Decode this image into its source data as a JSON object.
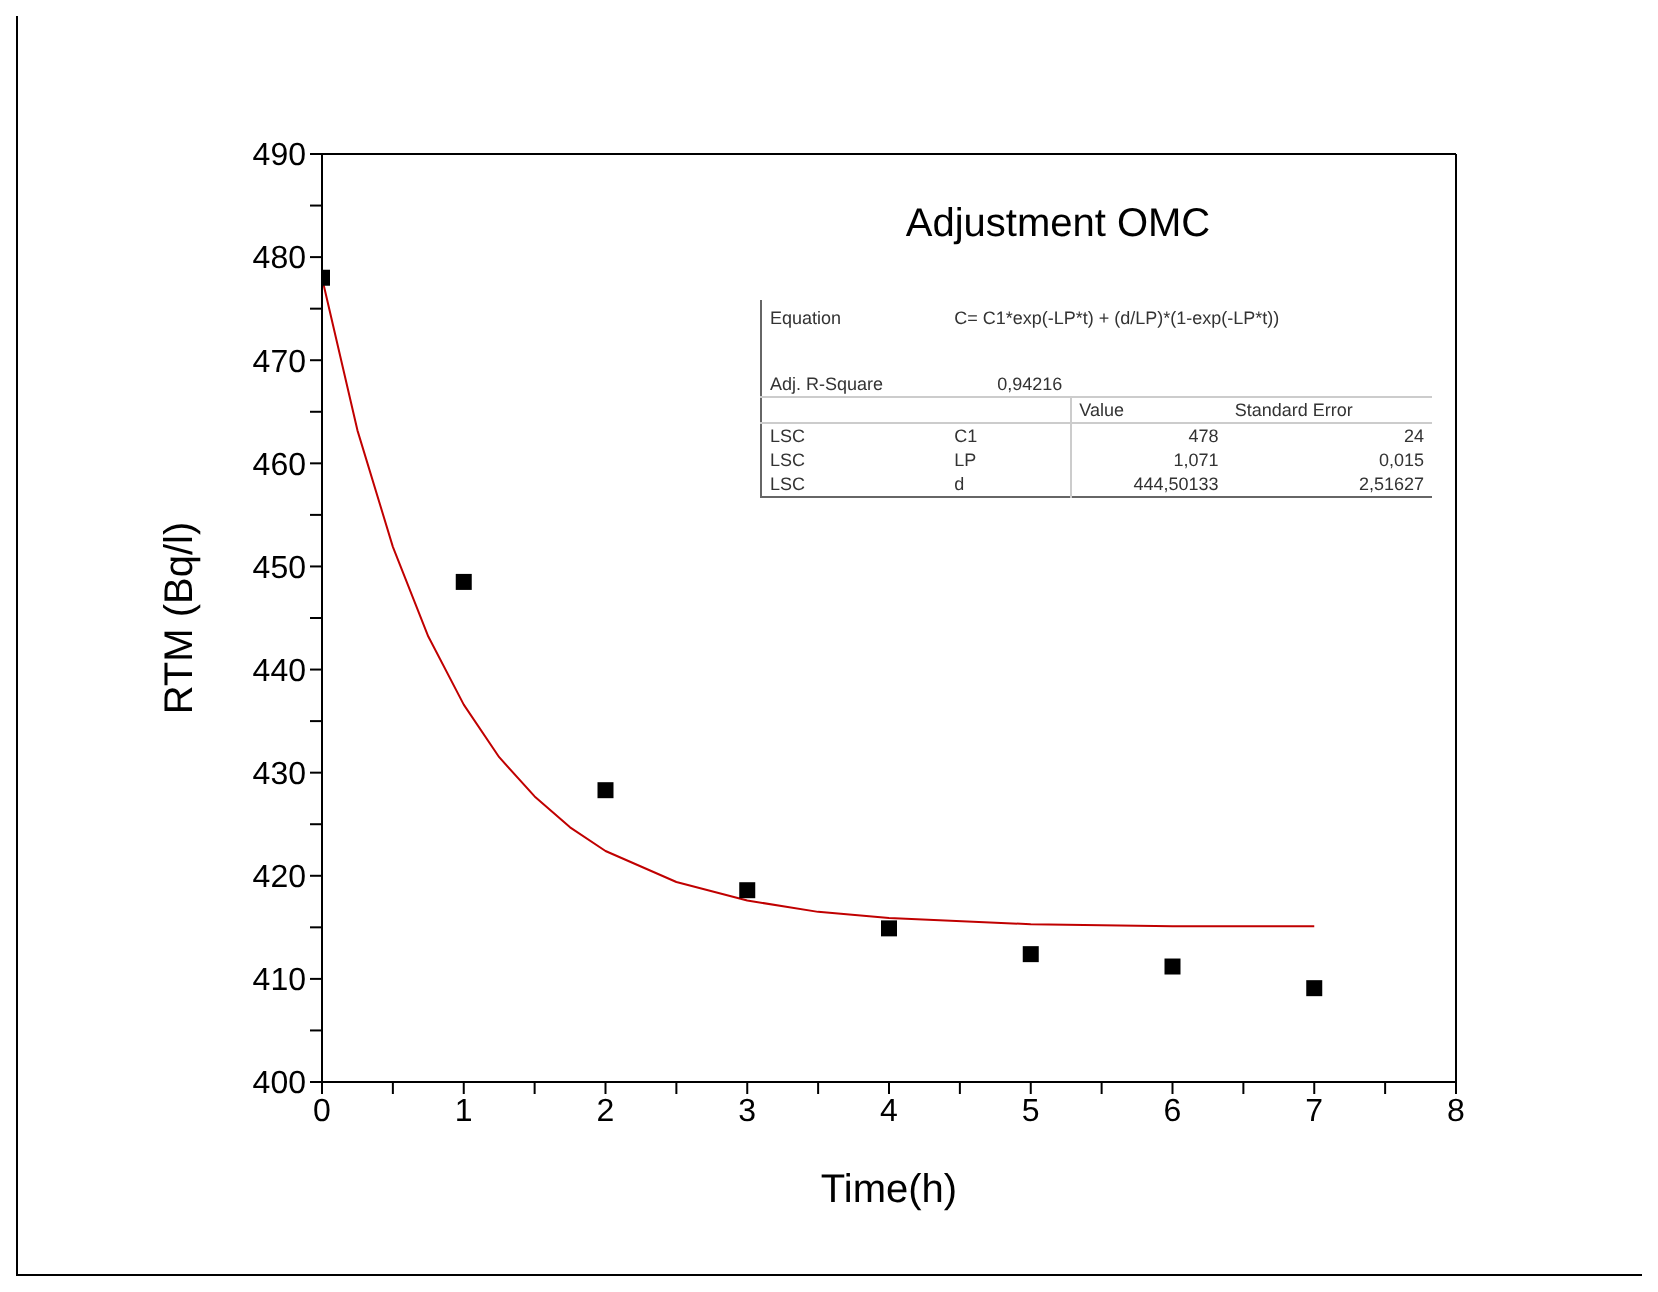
{
  "chart_data": {
    "type": "scatter",
    "title": "Adjustment OMC",
    "xlabel": "Time(h)",
    "ylabel": "RTM (Bq/l)",
    "xlim": [
      0,
      8
    ],
    "ylim": [
      400,
      490
    ],
    "xticks": [
      0,
      {
        "value": 0.5,
        "label": null
      },
      1,
      {
        "value": 1.5,
        "label": null
      },
      2,
      {
        "value": 2.5,
        "label": null
      },
      3,
      {
        "value": 3.5,
        "label": null
      },
      4,
      {
        "value": 4.5,
        "label": null
      },
      5,
      {
        "value": 5.5,
        "label": null
      },
      6,
      {
        "value": 6.5,
        "label": null
      },
      7,
      {
        "value": 7.5,
        "label": null
      },
      8
    ],
    "yticks": [
      400,
      {
        "value": 405,
        "label": null
      },
      410,
      {
        "value": 415,
        "label": null
      },
      420,
      {
        "value": 425,
        "label": null
      },
      430,
      {
        "value": 435,
        "label": null
      },
      440,
      {
        "value": 445,
        "label": null
      },
      450,
      {
        "value": 455,
        "label": null
      },
      460,
      {
        "value": 465,
        "label": null
      },
      470,
      {
        "value": 475,
        "label": null
      },
      480,
      {
        "value": 485,
        "label": null
      },
      490
    ],
    "grid": false,
    "legend": false,
    "series": [
      {
        "color": "#000000",
        "marker": "square",
        "x": [
          0,
          1,
          2,
          3,
          4,
          5,
          6,
          7
        ],
        "values": [
          478.0,
          448.5,
          428.3,
          418.6,
          414.9,
          412.4,
          411.2,
          409.1
        ]
      },
      {
        "type": "line",
        "color": "#c00000",
        "marker": "none",
        "line_style": "solid",
        "x": [
          0,
          0.25,
          0.5,
          0.75,
          1,
          1.25,
          1.5,
          1.75,
          2,
          2.5,
          3,
          3.5,
          4,
          5,
          6,
          7
        ],
        "values": [
          478,
          463.2,
          451.9,
          443.2,
          436.6,
          431.5,
          427.7,
          424.7,
          422.4,
          419.4,
          417.6,
          416.5,
          415.9,
          415.3,
          415.1,
          415.1
        ]
      }
    ],
    "annotations": [
      "Equation",
      "C= C1*exp(-LP*t) + (d/LP)*(1-exp(-LP*t))",
      "Adj. R-Square",
      "0,94216",
      "Value",
      "Standard Error",
      "LSC",
      "C1",
      "478",
      "24",
      "LSC",
      "LP",
      "1,071",
      "0,015",
      "LSC",
      "d",
      "444,50133",
      "2,51627"
    ]
  }
}
